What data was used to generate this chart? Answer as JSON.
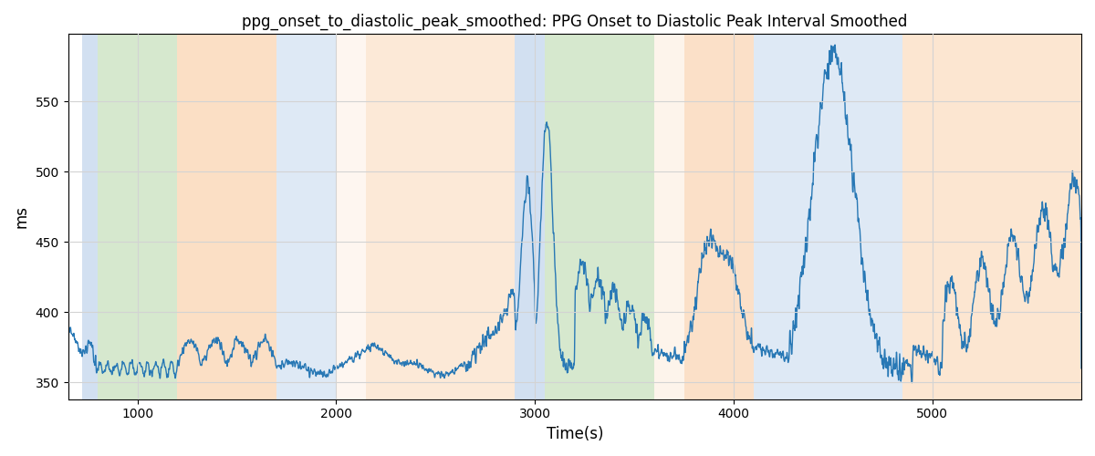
{
  "title": "ppg_onset_to_diastolic_peak_smoothed: PPG Onset to Diastolic Peak Interval Smoothed",
  "xlabel": "Time(s)",
  "ylabel": "ms",
  "xlim": [
    650,
    5750
  ],
  "ylim": [
    338,
    598
  ],
  "line_color": "#2878b5",
  "background_bands": [
    {
      "xmin": 720,
      "xmax": 800,
      "color": "#adc8e6",
      "alpha": 0.55
    },
    {
      "xmin": 800,
      "xmax": 1200,
      "color": "#b5d6a7",
      "alpha": 0.55
    },
    {
      "xmin": 1200,
      "xmax": 1700,
      "color": "#f9c89b",
      "alpha": 0.58
    },
    {
      "xmin": 1700,
      "xmax": 2000,
      "color": "#adc8e6",
      "alpha": 0.4
    },
    {
      "xmin": 2000,
      "xmax": 2150,
      "color": "#f9c89b",
      "alpha": 0.15
    },
    {
      "xmin": 2150,
      "xmax": 2900,
      "color": "#f9c89b",
      "alpha": 0.4
    },
    {
      "xmin": 2900,
      "xmax": 3050,
      "color": "#adc8e6",
      "alpha": 0.55
    },
    {
      "xmin": 3050,
      "xmax": 3600,
      "color": "#b5d6a7",
      "alpha": 0.55
    },
    {
      "xmin": 3600,
      "xmax": 3750,
      "color": "#f9c89b",
      "alpha": 0.2
    },
    {
      "xmin": 3750,
      "xmax": 4100,
      "color": "#f9c89b",
      "alpha": 0.55
    },
    {
      "xmin": 4100,
      "xmax": 4850,
      "color": "#adc8e6",
      "alpha": 0.4
    },
    {
      "xmin": 4850,
      "xmax": 5750,
      "color": "#f9c89b",
      "alpha": 0.45
    }
  ],
  "yticks": [
    350,
    400,
    450,
    500,
    550
  ],
  "xticks": [
    1000,
    2000,
    3000,
    4000,
    5000
  ],
  "figsize": [
    12.0,
    5.0
  ],
  "dpi": 100
}
